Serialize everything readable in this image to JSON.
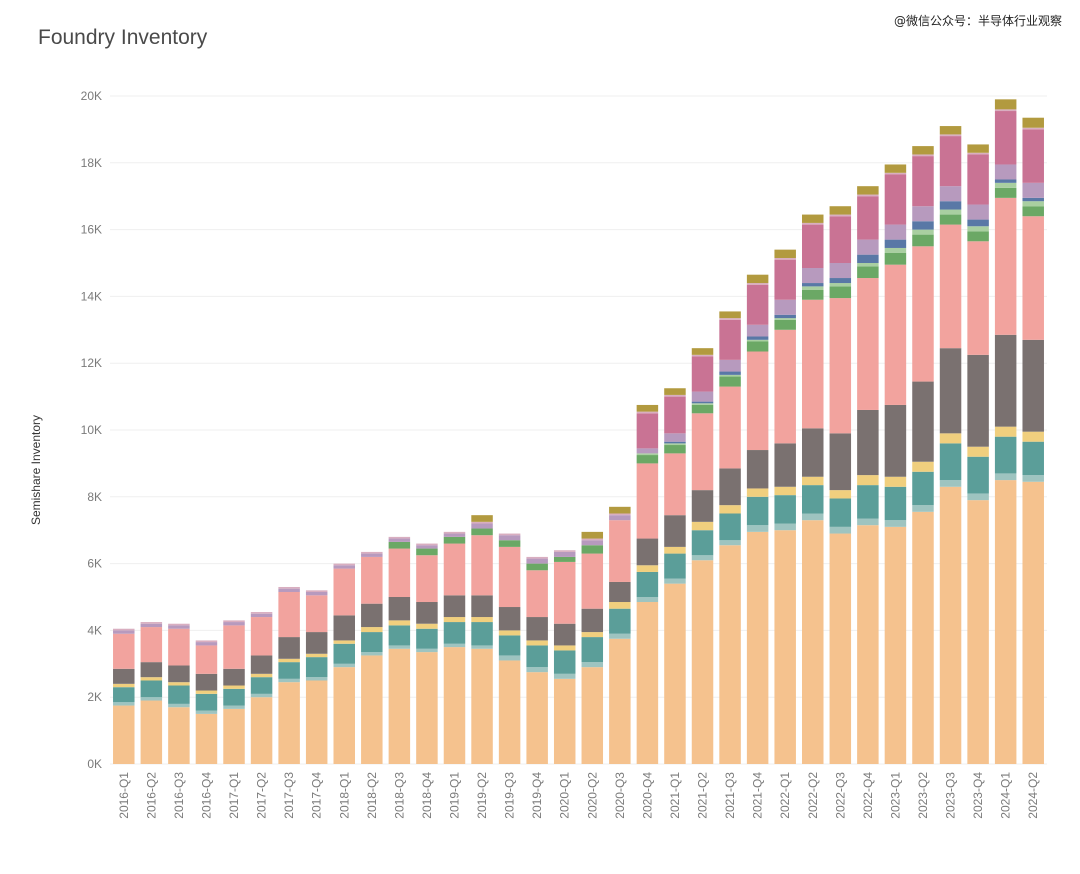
{
  "watermark": "@微信公众号：半导体行业观察",
  "chart_data": {
    "type": "bar",
    "stacked": true,
    "title": "Foundry Inventory",
    "xlabel": "",
    "ylabel": "Semishare Inventory",
    "ylim": [
      0,
      20000
    ],
    "yticks": [
      0,
      2000,
      4000,
      6000,
      8000,
      10000,
      12000,
      14000,
      16000,
      18000,
      20000
    ],
    "ytick_labels": [
      "0K",
      "2K",
      "4K",
      "6K",
      "8K",
      "10K",
      "12K",
      "14K",
      "16K",
      "18K",
      "20K"
    ],
    "grid": true,
    "legend": "none",
    "categories": [
      "2016-Q1",
      "2016-Q2",
      "2016-Q3",
      "2016-Q4",
      "2017-Q1",
      "2017-Q2",
      "2017-Q3",
      "2017-Q4",
      "2018-Q1",
      "2018-Q2",
      "2018-Q3",
      "2018-Q4",
      "2019-Q1",
      "2019-Q2",
      "2019-Q3",
      "2019-Q4",
      "2020-Q1",
      "2020-Q2",
      "2020-Q3",
      "2020-Q4",
      "2021-Q1",
      "2021-Q2",
      "2021-Q3",
      "2021-Q4",
      "2022-Q1",
      "2022-Q2",
      "2022-Q3",
      "2022-Q4",
      "2023-Q1",
      "2023-Q2",
      "2023-Q3",
      "2023-Q4",
      "2024-Q1",
      "2024-Q2"
    ],
    "series": [
      {
        "color": "#f5c28e",
        "values": [
          1750,
          1900,
          1700,
          1500,
          1650,
          2000,
          2450,
          2500,
          2900,
          3250,
          3450,
          3350,
          3500,
          3450,
          3100,
          2750,
          2550,
          2900,
          3750,
          4850,
          5400,
          6100,
          6550,
          6950,
          7000,
          7300,
          6900,
          7150,
          7100,
          7550,
          8300,
          7900,
          8500,
          8450
        ]
      },
      {
        "color": "#9ec4c0",
        "values": [
          100,
          100,
          100,
          100,
          100,
          100,
          100,
          100,
          100,
          100,
          100,
          100,
          100,
          100,
          150,
          150,
          150,
          150,
          150,
          150,
          150,
          150,
          150,
          200,
          200,
          200,
          200,
          200,
          200,
          200,
          200,
          200,
          200,
          200
        ]
      },
      {
        "color": "#5b9e99",
        "values": [
          450,
          500,
          550,
          500,
          500,
          500,
          500,
          600,
          600,
          600,
          600,
          600,
          650,
          700,
          600,
          650,
          700,
          750,
          750,
          750,
          750,
          750,
          800,
          850,
          850,
          850,
          850,
          1000,
          1000,
          1000,
          1100,
          1100,
          1100,
          1000
        ]
      },
      {
        "color": "#f0cf7e",
        "values": [
          100,
          100,
          100,
          100,
          100,
          100,
          100,
          100,
          100,
          150,
          150,
          150,
          150,
          150,
          150,
          150,
          150,
          150,
          200,
          200,
          200,
          250,
          250,
          250,
          250,
          250,
          250,
          300,
          300,
          300,
          300,
          300,
          300,
          300
        ]
      },
      {
        "color": "#7a7170",
        "values": [
          450,
          450,
          500,
          500,
          500,
          550,
          650,
          650,
          750,
          700,
          700,
          650,
          650,
          650,
          700,
          700,
          650,
          700,
          600,
          800,
          950,
          950,
          1100,
          1150,
          1300,
          1450,
          1700,
          1950,
          2150,
          2400,
          2550,
          2750,
          2750,
          2750
        ]
      },
      {
        "color": "#f2a39e",
        "values": [
          1050,
          1050,
          1100,
          850,
          1300,
          1150,
          1350,
          1100,
          1400,
          1400,
          1450,
          1400,
          1550,
          1800,
          1800,
          1400,
          1850,
          1650,
          1850,
          2250,
          1850,
          2300,
          2450,
          2950,
          3400,
          3850,
          4050,
          3950,
          4200,
          4050,
          3700,
          3400,
          4100,
          3700
        ]
      },
      {
        "color": "#6ba865",
        "values": [
          0,
          0,
          0,
          0,
          0,
          0,
          0,
          0,
          0,
          0,
          200,
          200,
          200,
          200,
          200,
          200,
          150,
          250,
          0,
          250,
          250,
          250,
          300,
          300,
          300,
          300,
          350,
          350,
          350,
          350,
          300,
          300,
          300,
          300
        ]
      },
      {
        "color": "#a9cfa1",
        "values": [
          0,
          0,
          0,
          0,
          0,
          0,
          0,
          0,
          0,
          0,
          0,
          0,
          0,
          0,
          0,
          0,
          0,
          0,
          0,
          50,
          50,
          50,
          50,
          50,
          50,
          100,
          100,
          100,
          150,
          150,
          150,
          150,
          150,
          150
        ]
      },
      {
        "color": "#5978a6",
        "values": [
          0,
          0,
          0,
          0,
          0,
          0,
          0,
          0,
          0,
          0,
          0,
          0,
          0,
          0,
          0,
          0,
          0,
          0,
          0,
          0,
          50,
          50,
          100,
          100,
          100,
          100,
          150,
          250,
          250,
          250,
          250,
          200,
          100,
          100
        ]
      },
      {
        "color": "#b79abe",
        "values": [
          100,
          100,
          100,
          100,
          100,
          100,
          100,
          100,
          100,
          100,
          100,
          100,
          100,
          150,
          150,
          150,
          150,
          150,
          150,
          150,
          250,
          300,
          350,
          350,
          450,
          450,
          450,
          450,
          450,
          450,
          450,
          450,
          450,
          450
        ]
      },
      {
        "color": "#c97394",
        "values": [
          0,
          0,
          0,
          0,
          0,
          0,
          0,
          0,
          0,
          0,
          0,
          0,
          0,
          0,
          0,
          0,
          0,
          0,
          0,
          1050,
          1100,
          1050,
          1200,
          1200,
          1200,
          1300,
          1400,
          1300,
          1500,
          1500,
          1500,
          1500,
          1600,
          1600
        ]
      },
      {
        "color": "#d9aec0",
        "values": [
          50,
          50,
          50,
          50,
          50,
          50,
          50,
          50,
          50,
          50,
          50,
          50,
          50,
          50,
          50,
          50,
          50,
          50,
          50,
          50,
          50,
          50,
          50,
          50,
          50,
          50,
          50,
          50,
          50,
          50,
          50,
          50,
          50,
          50
        ]
      },
      {
        "color": "#b29a3f",
        "values": [
          0,
          0,
          0,
          0,
          0,
          0,
          0,
          0,
          0,
          0,
          0,
          0,
          0,
          200,
          0,
          0,
          0,
          200,
          200,
          200,
          200,
          200,
          200,
          250,
          250,
          250,
          250,
          250,
          250,
          250,
          250,
          250,
          300,
          300
        ]
      }
    ]
  }
}
